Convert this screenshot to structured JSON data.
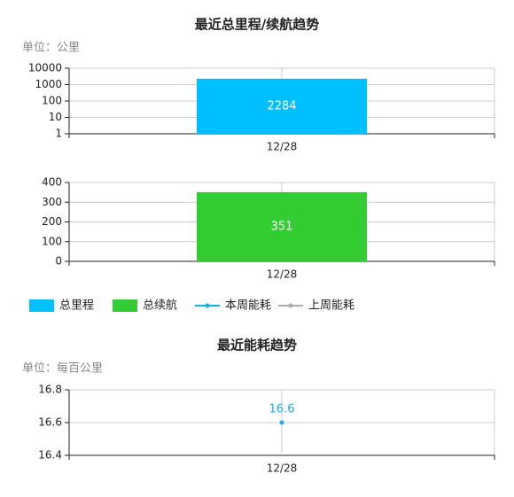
{
  "chart_data": [
    {
      "type": "bar",
      "title": "最近总里程/续航趋势",
      "subtitle": "单位：公里",
      "categories": [
        "12/28"
      ],
      "series": [
        {
          "name": "总里程",
          "color": "#00bfff",
          "values": [
            2284
          ]
        }
      ],
      "log_scale": true,
      "ylim": [
        1,
        10000
      ],
      "yticks": [
        1,
        10,
        100,
        1000,
        10000
      ],
      "grid": true
    },
    {
      "type": "bar",
      "categories": [
        "12/28"
      ],
      "series": [
        {
          "name": "总续航",
          "color": "#33cc33",
          "values": [
            351
          ]
        }
      ],
      "ylim": [
        0,
        400
      ],
      "yticks": [
        0,
        100,
        200,
        300,
        400
      ],
      "grid": true
    },
    {
      "type": "line",
      "title": "最近能耗趋势",
      "subtitle": "单位：每百公里",
      "categories": [
        "12/28"
      ],
      "series": [
        {
          "name": "本周能耗",
          "color": "#1aaee6",
          "values": [
            16.6
          ]
        },
        {
          "name": "上周能耗",
          "color": "#aaaaaa",
          "values": [
            null
          ]
        }
      ],
      "ylim": [
        16.4,
        16.8
      ],
      "yticks": [
        16.4,
        16.6,
        16.8
      ],
      "grid": true
    }
  ]
}
